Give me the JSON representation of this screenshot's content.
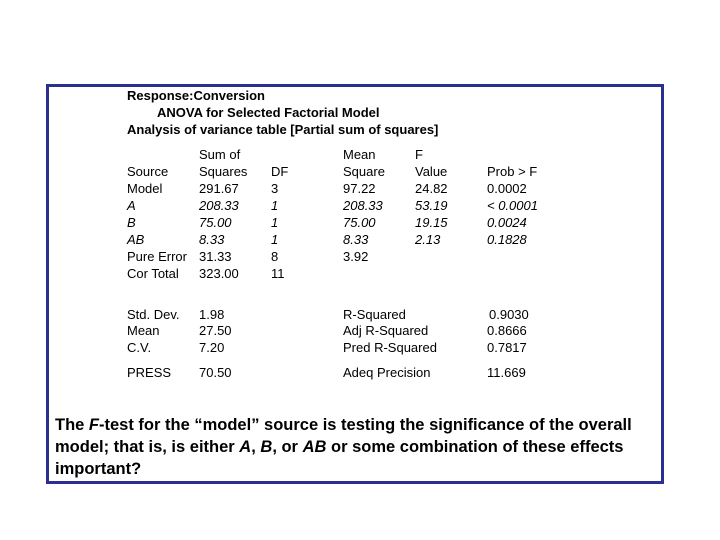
{
  "header": {
    "response": "Response:Conversion",
    "model_title": "ANOVA for Selected Factorial Model",
    "table_title": "Analysis of variance table [Partial sum of squares]"
  },
  "anova": {
    "headers": {
      "source": "Source",
      "ss_line1": "Sum of",
      "ss_line2": "Squares",
      "df": "DF",
      "ms_line1": "Mean",
      "ms_line2": "Square",
      "f_line1": "F",
      "f_line2": "Value",
      "p": "Prob > F"
    },
    "rows": [
      {
        "source": "Model",
        "ss": "291.67",
        "df": "3",
        "ms": "97.22",
        "f": "24.82",
        "p": "0.0002"
      },
      {
        "source": "A",
        "ss": "208.33",
        "df": "1",
        "ms": "208.33",
        "f": "53.19",
        "p": "< 0.0001"
      },
      {
        "source": "B",
        "ss": "75.00",
        "df": "1",
        "ms": "75.00",
        "f": "19.15",
        "p": "0.0024"
      },
      {
        "source": "AB",
        "ss": "8.33",
        "df": "1",
        "ms": "8.33",
        "f": "2.13",
        "p": "0.1828"
      },
      {
        "source": "Pure Error",
        "ss": "31.33",
        "df": "8",
        "ms": "3.92",
        "f": "",
        "p": ""
      },
      {
        "source": "Cor Total",
        "ss": "323.00",
        "df": "11",
        "ms": "",
        "f": "",
        "p": ""
      }
    ]
  },
  "stats": {
    "left": [
      {
        "label": "Std. Dev.",
        "value": "1.98"
      },
      {
        "label": "Mean",
        "value": "27.50"
      },
      {
        "label": "C.V.",
        "value": "7.20"
      }
    ],
    "right": [
      {
        "label": "R-Squared",
        "value": "0.9030"
      },
      {
        "label": "Adj R-Squared",
        "value": "0.8666"
      },
      {
        "label": "Pred R-Squared",
        "value": "0.7817"
      }
    ],
    "press_label": "PRESS",
    "press_value": "70.50",
    "adeq_label": "Adeq Precision",
    "adeq_value": "11.669"
  },
  "note": {
    "p1": "The ",
    "p2": "F",
    "p3": "-test for the “model” source is testing the significance of the overall model; that is, is either ",
    "p4": "A",
    "p5": ", ",
    "p6": "B",
    "p7": ", or ",
    "p8": "AB",
    "p9": " or some combination of these effects important?"
  }
}
